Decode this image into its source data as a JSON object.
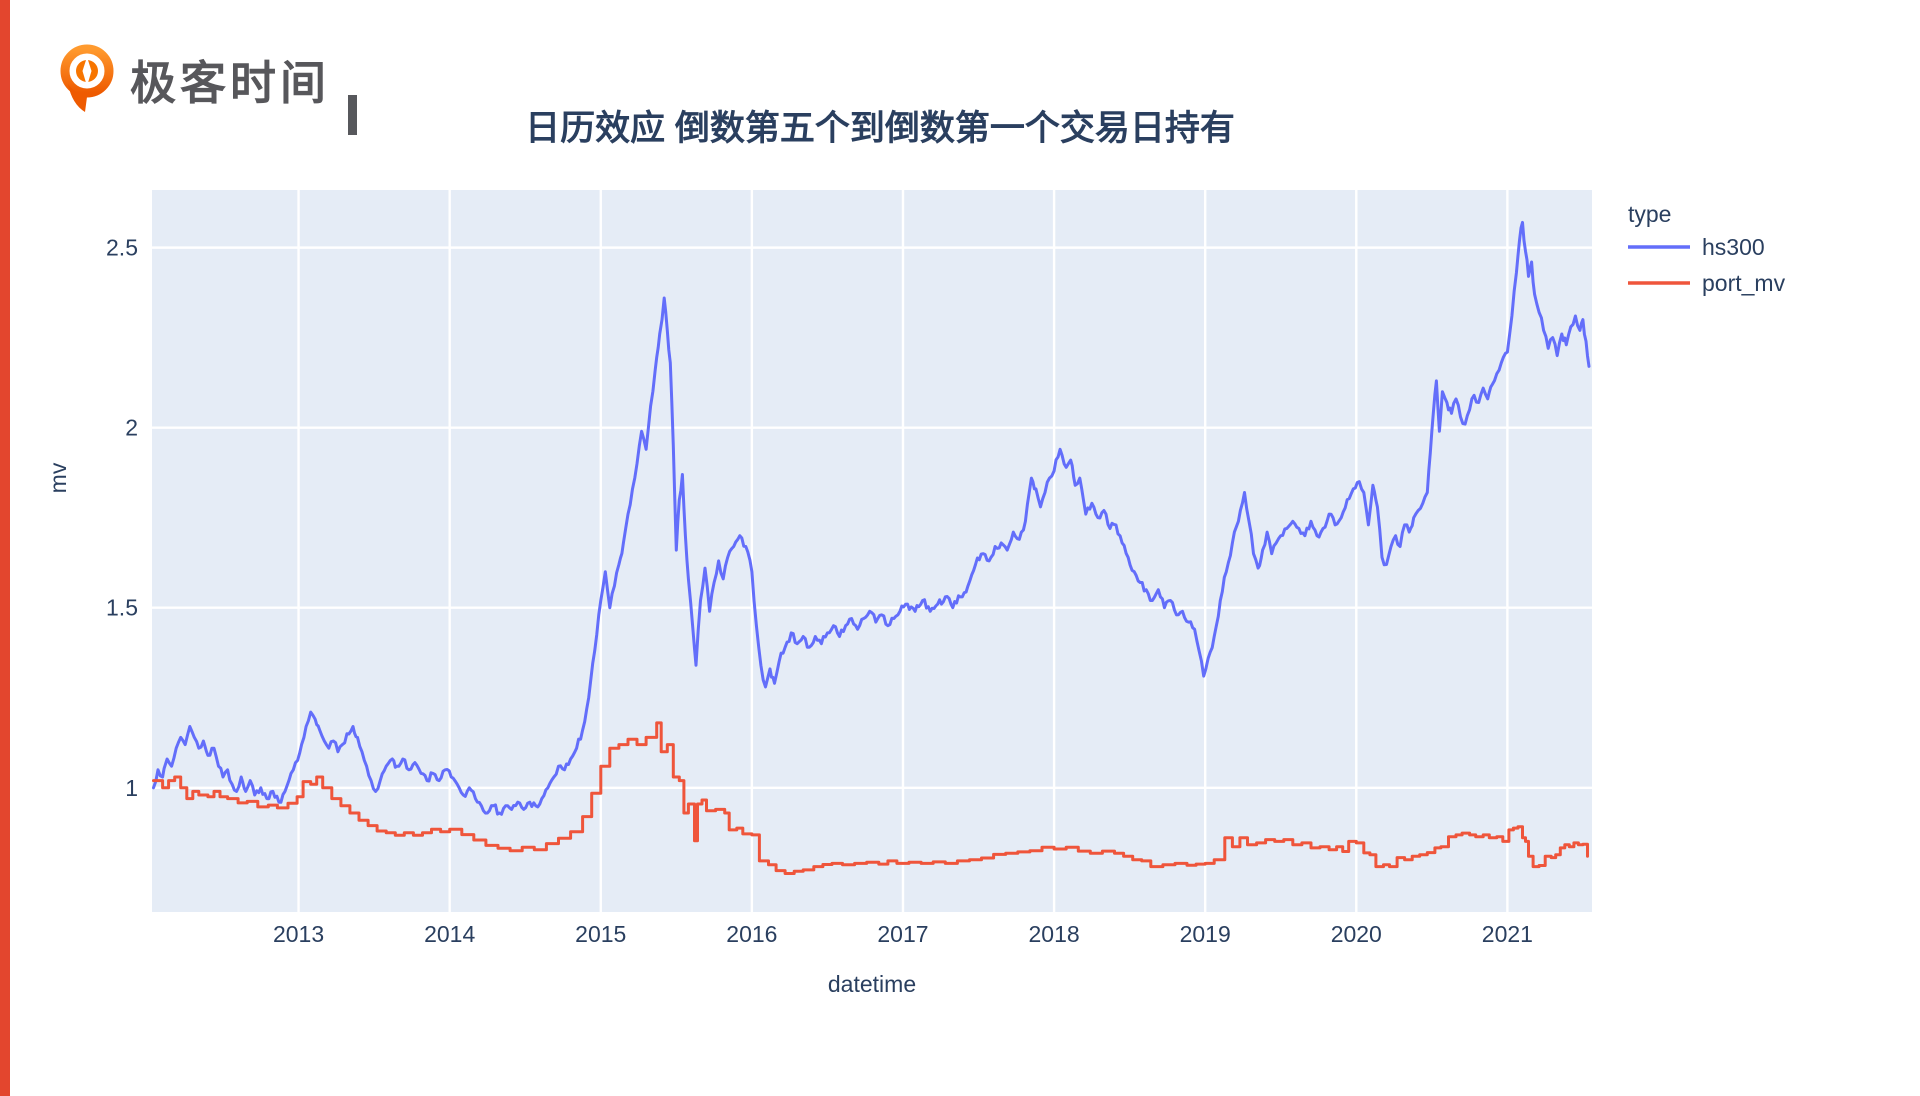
{
  "page": {
    "background": "#ffffff",
    "accent_bar_color": "#e3462e"
  },
  "logo": {
    "brand_text": "极客时间",
    "icon_color": "#f77500",
    "icon_color_dark": "#ee5a00",
    "text_color": "#57575b"
  },
  "chart_data": {
    "type": "line",
    "title": "日历效应 倒数第五个到倒数第一个交易日持有",
    "xlabel": "datetime",
    "ylabel": "mv",
    "legend_title": "type",
    "legend_position": "right-top",
    "grid": true,
    "plot_background": "#E5ECF6",
    "grid_color": "#ffffff",
    "text_color": "#2a3f5f",
    "x_ticks": [
      2013,
      2014,
      2015,
      2016,
      2017,
      2018,
      2019,
      2020,
      2021
    ],
    "y_ticks": [
      1,
      1.5,
      2,
      2.5
    ],
    "xlim": [
      2012.03,
      2021.56
    ],
    "ylim": [
      0.655,
      2.66
    ],
    "series": [
      {
        "name": "hs300",
        "color": "#636EFA",
        "mode": "jitter-line",
        "x": [
          2012.04,
          2012.07,
          2012.1,
          2012.13,
          2012.16,
          2012.19,
          2012.22,
          2012.25,
          2012.28,
          2012.31,
          2012.34,
          2012.37,
          2012.4,
          2012.44,
          2012.47,
          2012.5,
          2012.53,
          2012.56,
          2012.59,
          2012.62,
          2012.65,
          2012.68,
          2012.71,
          2012.75,
          2012.79,
          2012.83,
          2012.87,
          2012.91,
          2012.95,
          2012.98,
          2013.02,
          2013.05,
          2013.08,
          2013.11,
          2013.14,
          2013.17,
          2013.2,
          2013.23,
          2013.26,
          2013.29,
          2013.32,
          2013.36,
          2013.39,
          2013.42,
          2013.45,
          2013.48,
          2013.51,
          2013.54,
          2013.58,
          2013.62,
          2013.65,
          2013.69,
          2013.73,
          2013.77,
          2013.81,
          2013.85,
          2013.89,
          2013.93,
          2013.97,
          2014.01,
          2014.05,
          2014.09,
          2014.13,
          2014.17,
          2014.21,
          2014.25,
          2014.29,
          2014.33,
          2014.37,
          2014.41,
          2014.45,
          2014.49,
          2014.53,
          2014.57,
          2014.61,
          2014.65,
          2014.69,
          2014.72,
          2014.76,
          2014.8,
          2014.84,
          2014.88,
          2014.92,
          2014.96,
          2015.0,
          2015.03,
          2015.06,
          2015.09,
          2015.12,
          2015.15,
          2015.18,
          2015.21,
          2015.24,
          2015.27,
          2015.3,
          2015.33,
          2015.36,
          2015.39,
          2015.42,
          2015.44,
          2015.46,
          2015.48,
          2015.5,
          2015.52,
          2015.54,
          2015.56,
          2015.58,
          2015.61,
          2015.63,
          2015.66,
          2015.69,
          2015.72,
          2015.75,
          2015.78,
          2015.81,
          2015.84,
          2015.88,
          2015.92,
          2015.96,
          2016.0,
          2016.03,
          2016.06,
          2016.09,
          2016.12,
          2016.15,
          2016.18,
          2016.22,
          2016.26,
          2016.3,
          2016.34,
          2016.38,
          2016.42,
          2016.46,
          2016.5,
          2016.54,
          2016.58,
          2016.62,
          2016.66,
          2016.7,
          2016.74,
          2016.78,
          2016.82,
          2016.86,
          2016.9,
          2016.94,
          2016.98,
          2017.03,
          2017.08,
          2017.13,
          2017.18,
          2017.23,
          2017.28,
          2017.33,
          2017.38,
          2017.43,
          2017.48,
          2017.53,
          2017.57,
          2017.61,
          2017.65,
          2017.69,
          2017.73,
          2017.77,
          2017.81,
          2017.85,
          2017.88,
          2017.91,
          2017.94,
          2017.97,
          2018.0,
          2018.04,
          2018.08,
          2018.11,
          2018.14,
          2018.17,
          2018.21,
          2018.25,
          2018.29,
          2018.33,
          2018.37,
          2018.41,
          2018.45,
          2018.49,
          2018.53,
          2018.57,
          2018.61,
          2018.65,
          2018.69,
          2018.73,
          2018.77,
          2018.81,
          2018.85,
          2018.89,
          2018.93,
          2018.96,
          2018.99,
          2019.02,
          2019.06,
          2019.1,
          2019.14,
          2019.18,
          2019.22,
          2019.26,
          2019.29,
          2019.32,
          2019.35,
          2019.38,
          2019.41,
          2019.44,
          2019.47,
          2019.5,
          2019.54,
          2019.58,
          2019.62,
          2019.66,
          2019.7,
          2019.74,
          2019.78,
          2019.82,
          2019.86,
          2019.9,
          2019.94,
          2019.98,
          2020.02,
          2020.05,
          2020.08,
          2020.11,
          2020.14,
          2020.17,
          2020.2,
          2020.23,
          2020.26,
          2020.29,
          2020.32,
          2020.35,
          2020.38,
          2020.41,
          2020.44,
          2020.47,
          2020.49,
          2020.51,
          2020.53,
          2020.55,
          2020.57,
          2020.6,
          2020.63,
          2020.66,
          2020.69,
          2020.72,
          2020.75,
          2020.78,
          2020.81,
          2020.84,
          2020.87,
          2020.9,
          2020.93,
          2020.96,
          2021.0,
          2021.03,
          2021.06,
          2021.08,
          2021.1,
          2021.12,
          2021.14,
          2021.16,
          2021.18,
          2021.21,
          2021.24,
          2021.27,
          2021.3,
          2021.33,
          2021.36,
          2021.39,
          2021.42,
          2021.45,
          2021.48,
          2021.5,
          2021.52,
          2021.54
        ],
        "y": [
          1.0,
          1.05,
          1.03,
          1.08,
          1.06,
          1.11,
          1.14,
          1.12,
          1.17,
          1.14,
          1.11,
          1.13,
          1.09,
          1.11,
          1.06,
          1.03,
          1.05,
          1.01,
          0.99,
          1.03,
          0.99,
          1.02,
          0.98,
          1.0,
          0.97,
          0.99,
          0.96,
          0.99,
          1.04,
          1.07,
          1.12,
          1.17,
          1.21,
          1.19,
          1.16,
          1.13,
          1.11,
          1.13,
          1.1,
          1.12,
          1.15,
          1.17,
          1.14,
          1.1,
          1.06,
          1.02,
          0.99,
          1.02,
          1.06,
          1.08,
          1.06,
          1.08,
          1.05,
          1.07,
          1.04,
          1.02,
          1.04,
          1.02,
          1.05,
          1.03,
          1.01,
          0.98,
          1.0,
          0.97,
          0.95,
          0.93,
          0.95,
          0.93,
          0.95,
          0.94,
          0.96,
          0.94,
          0.96,
          0.95,
          0.97,
          1.0,
          1.03,
          1.06,
          1.05,
          1.08,
          1.11,
          1.16,
          1.25,
          1.38,
          1.52,
          1.6,
          1.5,
          1.56,
          1.62,
          1.68,
          1.76,
          1.83,
          1.9,
          1.99,
          1.94,
          2.06,
          2.16,
          2.26,
          2.36,
          2.27,
          2.18,
          1.95,
          1.66,
          1.8,
          1.87,
          1.7,
          1.58,
          1.44,
          1.34,
          1.52,
          1.61,
          1.49,
          1.57,
          1.63,
          1.58,
          1.64,
          1.67,
          1.7,
          1.67,
          1.6,
          1.45,
          1.34,
          1.28,
          1.33,
          1.29,
          1.35,
          1.39,
          1.43,
          1.4,
          1.42,
          1.39,
          1.42,
          1.4,
          1.43,
          1.45,
          1.42,
          1.45,
          1.47,
          1.44,
          1.47,
          1.49,
          1.46,
          1.48,
          1.45,
          1.47,
          1.49,
          1.51,
          1.49,
          1.52,
          1.49,
          1.51,
          1.53,
          1.5,
          1.53,
          1.56,
          1.62,
          1.65,
          1.63,
          1.67,
          1.68,
          1.66,
          1.71,
          1.69,
          1.74,
          1.86,
          1.83,
          1.78,
          1.82,
          1.86,
          1.88,
          1.94,
          1.89,
          1.91,
          1.84,
          1.86,
          1.76,
          1.79,
          1.75,
          1.77,
          1.72,
          1.73,
          1.68,
          1.64,
          1.6,
          1.57,
          1.55,
          1.52,
          1.55,
          1.5,
          1.52,
          1.48,
          1.49,
          1.46,
          1.44,
          1.38,
          1.31,
          1.36,
          1.42,
          1.52,
          1.6,
          1.68,
          1.74,
          1.82,
          1.74,
          1.65,
          1.61,
          1.66,
          1.71,
          1.65,
          1.68,
          1.7,
          1.72,
          1.74,
          1.72,
          1.7,
          1.74,
          1.7,
          1.72,
          1.76,
          1.73,
          1.75,
          1.8,
          1.83,
          1.85,
          1.82,
          1.73,
          1.84,
          1.78,
          1.64,
          1.62,
          1.67,
          1.7,
          1.67,
          1.73,
          1.71,
          1.75,
          1.77,
          1.79,
          1.82,
          1.93,
          2.04,
          2.13,
          1.99,
          2.1,
          2.07,
          2.04,
          2.08,
          2.03,
          2.01,
          2.05,
          2.09,
          2.07,
          2.11,
          2.08,
          2.12,
          2.15,
          2.18,
          2.21,
          2.31,
          2.43,
          2.52,
          2.57,
          2.49,
          2.42,
          2.46,
          2.37,
          2.32,
          2.27,
          2.22,
          2.25,
          2.2,
          2.26,
          2.23,
          2.28,
          2.31,
          2.27,
          2.3,
          2.24,
          2.17
        ]
      },
      {
        "name": "port_mv",
        "color": "#EF553B",
        "mode": "step",
        "x": [
          2012.04,
          2012.1,
          2012.14,
          2012.18,
          2012.22,
          2012.26,
          2012.3,
          2012.34,
          2012.4,
          2012.44,
          2012.48,
          2012.53,
          2012.6,
          2012.66,
          2012.73,
          2012.8,
          2012.86,
          2012.93,
          2012.99,
          2013.03,
          2013.08,
          2013.12,
          2013.16,
          2013.22,
          2013.28,
          2013.34,
          2013.4,
          2013.46,
          2013.52,
          2013.58,
          2013.64,
          2013.7,
          2013.76,
          2013.82,
          2013.88,
          2013.94,
          2014.0,
          2014.08,
          2014.16,
          2014.24,
          2014.32,
          2014.4,
          2014.48,
          2014.56,
          2014.64,
          2014.72,
          2014.8,
          2014.88,
          2014.94,
          2015.0,
          2015.06,
          2015.12,
          2015.18,
          2015.24,
          2015.3,
          2015.34,
          2015.37,
          2015.4,
          2015.44,
          2015.48,
          2015.52,
          2015.55,
          2015.58,
          2015.62,
          2015.64,
          2015.67,
          2015.7,
          2015.76,
          2015.82,
          2015.85,
          2015.9,
          2015.94,
          2016.0,
          2016.05,
          2016.11,
          2016.16,
          2016.22,
          2016.28,
          2016.34,
          2016.41,
          2016.47,
          2016.53,
          2016.6,
          2016.68,
          2016.76,
          2016.84,
          2016.9,
          2016.96,
          2017.04,
          2017.12,
          2017.2,
          2017.28,
          2017.36,
          2017.44,
          2017.52,
          2017.6,
          2017.68,
          2017.76,
          2017.84,
          2017.92,
          2018.0,
          2018.08,
          2018.16,
          2018.24,
          2018.32,
          2018.4,
          2018.46,
          2018.52,
          2018.58,
          2018.64,
          2018.72,
          2018.8,
          2018.88,
          2018.94,
          2019.0,
          2019.06,
          2019.13,
          2019.18,
          2019.23,
          2019.28,
          2019.34,
          2019.4,
          2019.46,
          2019.52,
          2019.58,
          2019.64,
          2019.7,
          2019.76,
          2019.82,
          2019.87,
          2019.91,
          2019.95,
          2020.0,
          2020.05,
          2020.09,
          2020.13,
          2020.18,
          2020.22,
          2020.27,
          2020.32,
          2020.37,
          2020.42,
          2020.47,
          2020.52,
          2020.56,
          2020.61,
          2020.66,
          2020.7,
          2020.75,
          2020.79,
          2020.84,
          2020.88,
          2020.93,
          2020.97,
          2021.01,
          2021.04,
          2021.07,
          2021.1,
          2021.12,
          2021.14,
          2021.17,
          2021.21,
          2021.25,
          2021.29,
          2021.32,
          2021.35,
          2021.38,
          2021.41,
          2021.44,
          2021.47,
          2021.5,
          2021.53
        ],
        "y": [
          1.02,
          1.0,
          1.02,
          1.03,
          1.0,
          0.97,
          0.99,
          0.98,
          0.975,
          0.99,
          0.975,
          0.97,
          0.958,
          0.962,
          0.947,
          0.952,
          0.944,
          0.957,
          0.975,
          1.017,
          1.01,
          1.03,
          1.0,
          0.97,
          0.95,
          0.93,
          0.91,
          0.895,
          0.88,
          0.875,
          0.868,
          0.875,
          0.868,
          0.875,
          0.885,
          0.878,
          0.885,
          0.87,
          0.855,
          0.84,
          0.832,
          0.825,
          0.835,
          0.828,
          0.845,
          0.86,
          0.878,
          0.92,
          0.985,
          1.06,
          1.11,
          1.12,
          1.135,
          1.12,
          1.14,
          1.14,
          1.18,
          1.1,
          1.12,
          1.03,
          1.02,
          0.93,
          0.955,
          0.853,
          0.955,
          0.966,
          0.936,
          0.94,
          0.93,
          0.883,
          0.888,
          0.872,
          0.869,
          0.797,
          0.786,
          0.77,
          0.762,
          0.768,
          0.772,
          0.781,
          0.787,
          0.79,
          0.786,
          0.79,
          0.793,
          0.788,
          0.797,
          0.79,
          0.793,
          0.79,
          0.794,
          0.79,
          0.797,
          0.8,
          0.805,
          0.815,
          0.818,
          0.822,
          0.825,
          0.835,
          0.83,
          0.835,
          0.824,
          0.818,
          0.824,
          0.818,
          0.81,
          0.8,
          0.797,
          0.781,
          0.786,
          0.79,
          0.785,
          0.788,
          0.79,
          0.8,
          0.861,
          0.836,
          0.861,
          0.842,
          0.847,
          0.856,
          0.851,
          0.856,
          0.842,
          0.847,
          0.833,
          0.836,
          0.828,
          0.836,
          0.823,
          0.851,
          0.847,
          0.819,
          0.814,
          0.781,
          0.786,
          0.781,
          0.806,
          0.8,
          0.81,
          0.814,
          0.82,
          0.833,
          0.836,
          0.864,
          0.869,
          0.874,
          0.869,
          0.864,
          0.869,
          0.861,
          0.864,
          0.851,
          0.883,
          0.888,
          0.892,
          0.861,
          0.851,
          0.81,
          0.781,
          0.784,
          0.81,
          0.806,
          0.814,
          0.833,
          0.842,
          0.836,
          0.847,
          0.842,
          0.843,
          0.81
        ]
      }
    ]
  }
}
